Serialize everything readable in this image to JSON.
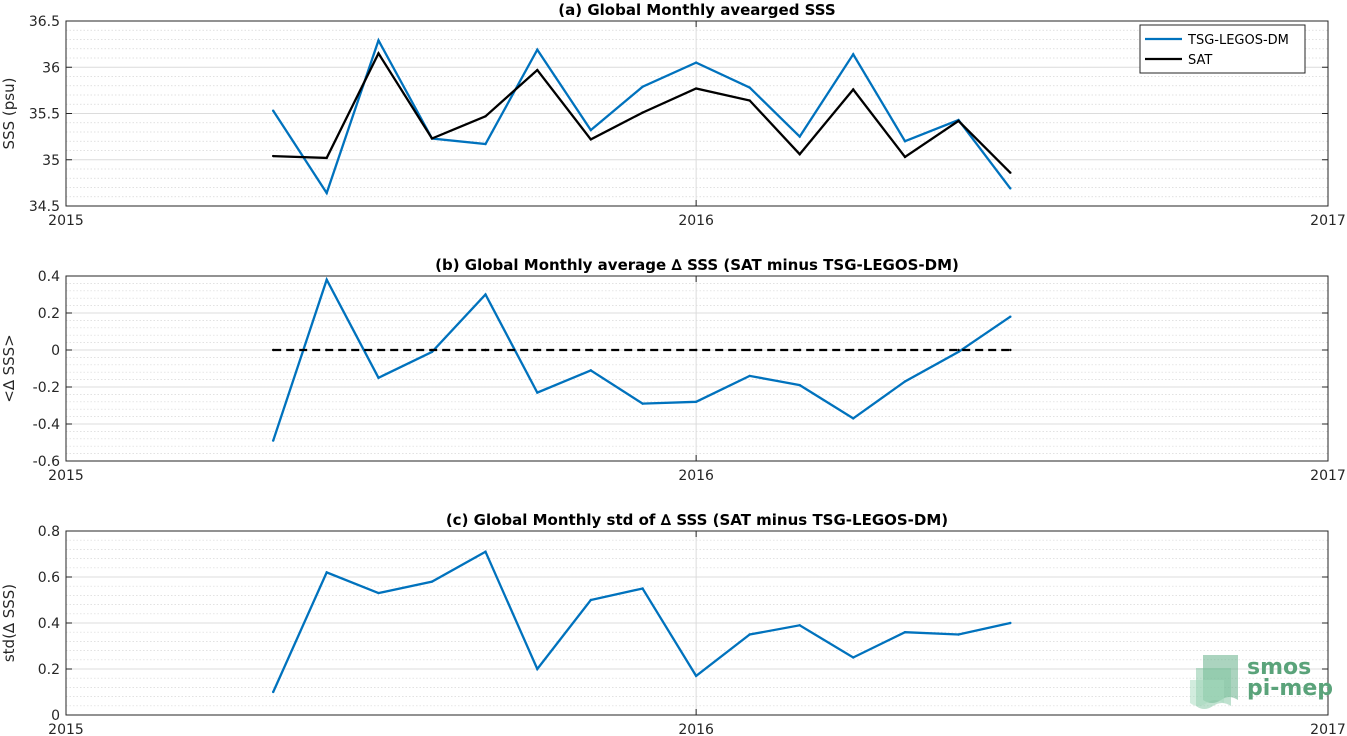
{
  "chart_data": [
    {
      "type": "line",
      "title": "(a) Global Monthly avearged SSS",
      "xlabel": "",
      "ylabel": "SSS (psu)",
      "xlim": [
        "2015-01-01",
        "2017-01-01"
      ],
      "xticks": [
        "2015",
        "2016",
        "2017"
      ],
      "ylim": [
        34.5,
        36.5
      ],
      "yticks": [
        "34.5",
        "35",
        "35.5",
        "36",
        "36.5"
      ],
      "grid": true,
      "legend": "top-right",
      "x": [
        "2015-05-01",
        "2015-06-01",
        "2015-07-01",
        "2015-08-01",
        "2015-09-01",
        "2015-10-01",
        "2015-11-01",
        "2015-12-01",
        "2016-01-01",
        "2016-02-01",
        "2016-03-01",
        "2016-04-01",
        "2016-05-01",
        "2016-06-01",
        "2016-07-01"
      ],
      "series": [
        {
          "name": "TSG-LEGOS-DM",
          "color": "#0072bd",
          "dashed": false,
          "values": [
            35.53,
            34.64,
            36.29,
            35.23,
            35.17,
            36.19,
            35.32,
            35.79,
            36.05,
            35.78,
            35.25,
            36.14,
            35.2,
            35.43,
            34.69
          ]
        },
        {
          "name": "SAT",
          "color": "#000000",
          "dashed": false,
          "values": [
            35.04,
            35.02,
            36.15,
            35.23,
            35.47,
            35.97,
            35.22,
            35.51,
            35.77,
            35.64,
            35.06,
            35.76,
            35.03,
            35.42,
            34.86
          ]
        }
      ]
    },
    {
      "type": "line",
      "title": "(b) Global Monthly average ∆ SSS (SAT minus TSG-LEGOS-DM)",
      "xlabel": "",
      "ylabel": "<∆ SSS>",
      "xlim": [
        "2015-01-01",
        "2017-01-01"
      ],
      "xticks": [
        "2015",
        "2016",
        "2017"
      ],
      "ylim": [
        -0.6,
        0.4
      ],
      "yticks": [
        "-0.6",
        "-0.4",
        "-0.2",
        "0",
        "0.2",
        "0.4"
      ],
      "grid": true,
      "x": [
        "2015-05-01",
        "2015-06-01",
        "2015-07-01",
        "2015-08-01",
        "2015-09-01",
        "2015-10-01",
        "2015-11-01",
        "2015-12-01",
        "2016-01-01",
        "2016-02-01",
        "2016-03-01",
        "2016-04-01",
        "2016-05-01",
        "2016-06-01",
        "2016-07-01"
      ],
      "series": [
        {
          "color": "#0072bd",
          "dashed": false,
          "values": [
            -0.49,
            0.38,
            -0.15,
            -0.01,
            0.3,
            -0.23,
            -0.11,
            -0.29,
            -0.28,
            -0.14,
            -0.19,
            -0.37,
            -0.17,
            -0.01,
            0.18
          ]
        },
        {
          "color": "#000000",
          "dashed": true,
          "values": [
            0,
            0,
            0,
            0,
            0,
            0,
            0,
            0,
            0,
            0,
            0,
            0,
            0,
            0,
            0
          ]
        }
      ]
    },
    {
      "type": "line",
      "title": "(c) Global Monthly std of ∆ SSS (SAT minus TSG-LEGOS-DM)",
      "xlabel": "",
      "ylabel": "std(∆ SSS)",
      "xlim": [
        "2015-01-01",
        "2017-01-01"
      ],
      "xticks": [
        "2015",
        "2016",
        "2017"
      ],
      "ylim": [
        0,
        0.8
      ],
      "yticks": [
        "0",
        "0.2",
        "0.4",
        "0.6",
        "0.8"
      ],
      "grid": true,
      "x": [
        "2015-05-01",
        "2015-06-01",
        "2015-07-01",
        "2015-08-01",
        "2015-09-01",
        "2015-10-01",
        "2015-11-01",
        "2015-12-01",
        "2016-01-01",
        "2016-02-01",
        "2016-03-01",
        "2016-04-01",
        "2016-05-01",
        "2016-06-01",
        "2016-07-01"
      ],
      "series": [
        {
          "color": "#0072bd",
          "dashed": false,
          "values": [
            0.1,
            0.62,
            0.53,
            0.58,
            0.71,
            0.2,
            0.5,
            0.55,
            0.17,
            0.35,
            0.39,
            0.25,
            0.36,
            0.35,
            0.4
          ]
        }
      ]
    }
  ],
  "logo": {
    "line1": "smos",
    "line2": "pi-mep",
    "color": "#5aa37a"
  }
}
